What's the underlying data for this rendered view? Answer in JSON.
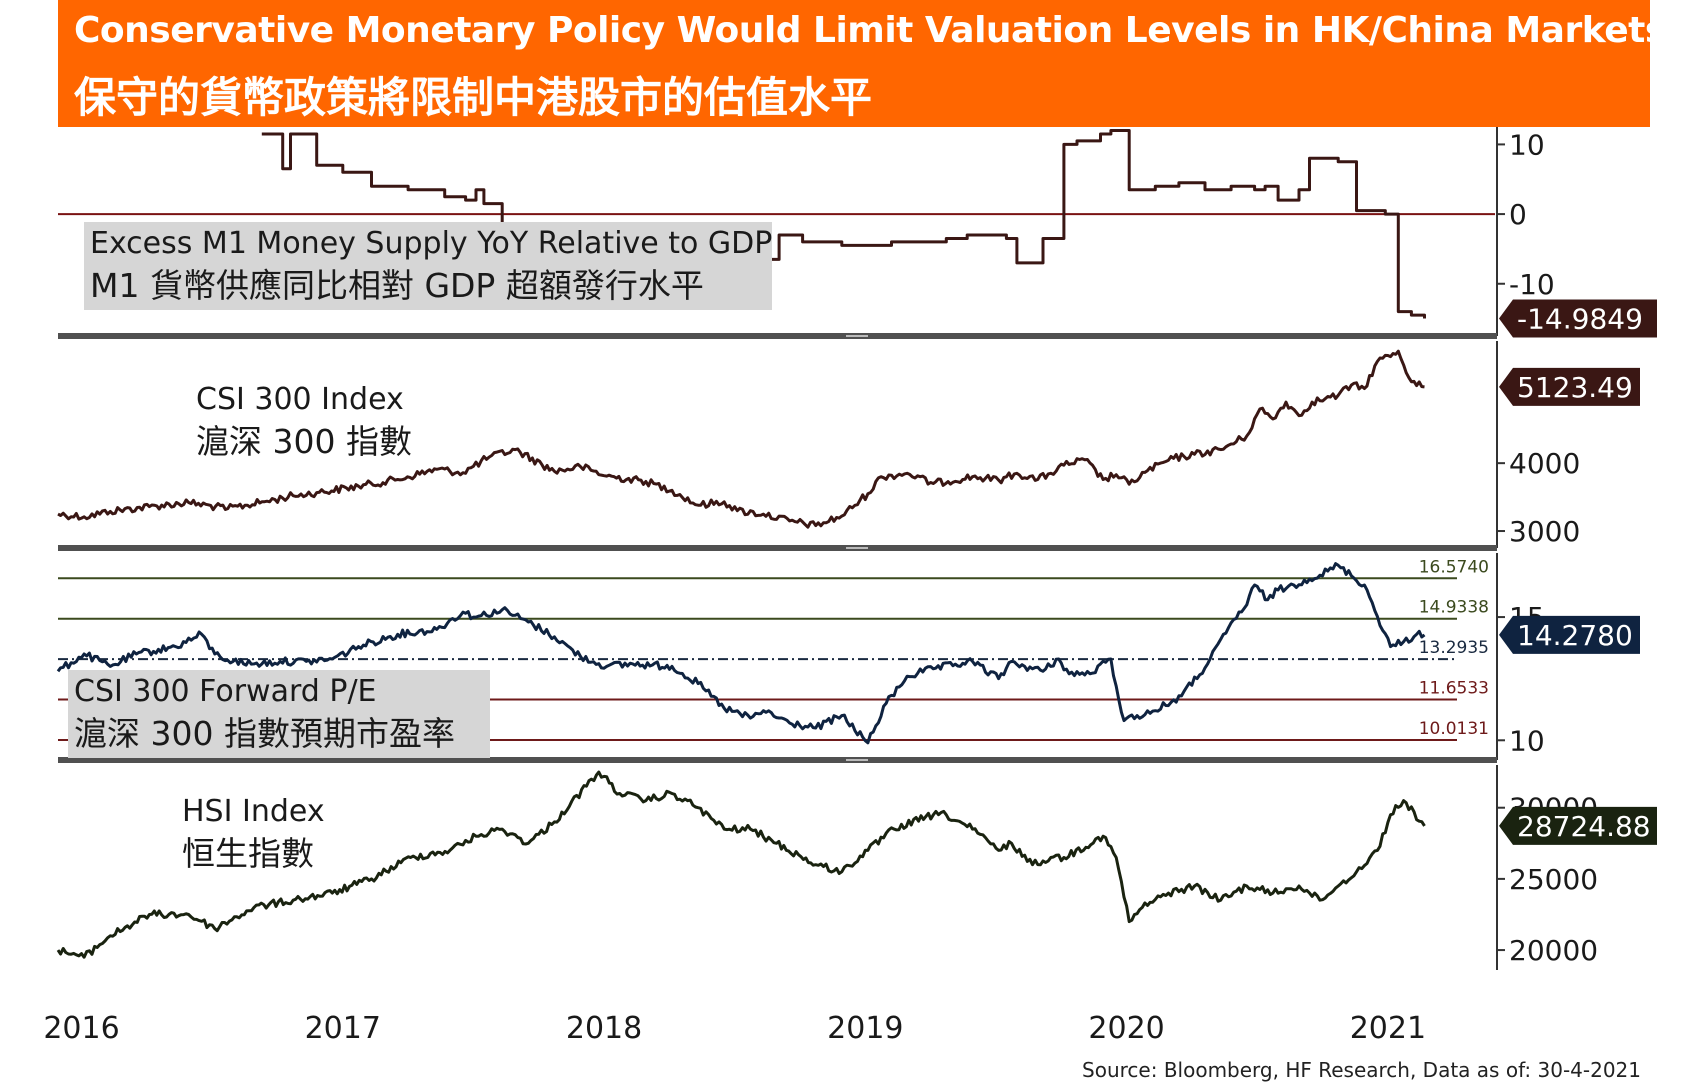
{
  "title": {
    "english": "Conservative Monetary Policy Would Limit Valuation Levels in HK/China Markets",
    "chinese": "保守的貨幣政策將限制中港股市的估值水平"
  },
  "source": "Source: Bloomberg, HF Research, Data as of: 30-4-2021",
  "chart_data": [
    {
      "type": "line",
      "name": "m1-excess",
      "label_en": "Excess M1 Money Supply YoY Relative to GDP",
      "label_zh": "M1 貨幣供應同比相對 GDP 超額發行水平",
      "ylim": [
        -17.5,
        12.5
      ],
      "ticks": [
        10,
        0,
        -10
      ],
      "tick_labels": [
        "10",
        "0",
        "-10"
      ],
      "reference_line": 0,
      "last_value": -14.9849,
      "last_value_label": "-14.9849",
      "badge_color": "#3a1714",
      "line_color": "#3a1714",
      "step": true,
      "x": [
        2016.73,
        2016.81,
        2016.84,
        2016.94,
        2017.04,
        2017.15,
        2017.29,
        2017.43,
        2017.51,
        2017.55,
        2017.58,
        2017.65,
        2017.78,
        2017.95,
        2018.17,
        2018.25,
        2018.4,
        2018.48,
        2018.53,
        2018.63,
        2018.71,
        2018.8,
        2018.95,
        2019.14,
        2019.35,
        2019.43,
        2019.58,
        2019.62,
        2019.72,
        2019.8,
        2019.85,
        2019.94,
        2019.98,
        2020.05,
        2020.15,
        2020.24,
        2020.34,
        2020.44,
        2020.53,
        2020.57,
        2020.62,
        2020.7,
        2020.74,
        2020.85,
        2020.92,
        2020.95,
        2021.03,
        2021.08,
        2021.13,
        2021.18
      ],
      "y": [
        11.5,
        6.5,
        11.5,
        7,
        6,
        4,
        3.5,
        2.5,
        2,
        3.5,
        1.5,
        -3,
        -5,
        -7,
        -7.5,
        -8,
        -8.5,
        -9,
        -9.5,
        -6.5,
        -3,
        -4,
        -4.5,
        -4,
        -3.5,
        -3,
        -3.5,
        -7,
        -3.5,
        10,
        10.5,
        11.5,
        12,
        3.5,
        4,
        4.5,
        3.5,
        4,
        3.5,
        4,
        2,
        3.5,
        8,
        7.5,
        0.5,
        0.5,
        0,
        -14,
        -14.5,
        -14.9849
      ]
    },
    {
      "type": "line",
      "name": "csi300",
      "label_en": "CSI 300 Index",
      "label_zh": "滬深 300 指數",
      "ylim": [
        2750,
        5800
      ],
      "ticks": [
        4000,
        3000
      ],
      "tick_labels": [
        "4000",
        "3000"
      ],
      "last_value": 5123.49,
      "last_value_label": "5123.49",
      "badge_color": "#3a1714",
      "line_color": "#3a1714",
      "x": [
        2015.95,
        2016.05,
        2016.15,
        2016.3,
        2016.45,
        2016.6,
        2016.75,
        2016.85,
        2016.95,
        2017.1,
        2017.25,
        2017.4,
        2017.5,
        2017.6,
        2017.7,
        2017.85,
        2017.95,
        2018.05,
        2018.2,
        2018.3,
        2018.4,
        2018.5,
        2018.55,
        2018.65,
        2018.75,
        2018.85,
        2018.95,
        2019.05,
        2019.1,
        2019.2,
        2019.3,
        2019.45,
        2019.55,
        2019.62,
        2019.7,
        2019.75,
        2019.8,
        2019.88,
        2019.95,
        2020.0,
        2020.05,
        2020.12,
        2020.22,
        2020.3,
        2020.4,
        2020.5,
        2020.55,
        2020.6,
        2020.65,
        2020.7,
        2020.75,
        2020.8,
        2020.85,
        2020.9,
        2020.95,
        2021.0,
        2021.08,
        2021.13,
        2021.18
      ],
      "y": [
        3250,
        3210,
        3290,
        3360,
        3420,
        3330,
        3440,
        3520,
        3570,
        3660,
        3760,
        3910,
        3860,
        4090,
        4200,
        3880,
        3950,
        3810,
        3730,
        3600,
        3380,
        3430,
        3300,
        3250,
        3150,
        3080,
        3220,
        3550,
        3800,
        3850,
        3700,
        3800,
        3750,
        3850,
        3760,
        3850,
        3970,
        4050,
        3760,
        3830,
        3690,
        3890,
        4070,
        4130,
        4200,
        4400,
        4800,
        4650,
        4900,
        4700,
        4900,
        4950,
        5000,
        5150,
        5100,
        5500,
        5650,
        5200,
        5123.49
      ]
    },
    {
      "type": "line",
      "name": "csi300-pe",
      "label_en": "CSI 300 Forward P/E",
      "label_zh": "滬深 300 指數預期市盈率",
      "ylim": [
        9.2,
        17.6
      ],
      "ticks": [
        15,
        10
      ],
      "tick_labels": [
        "15",
        "10"
      ],
      "reference_lines": [
        16.574,
        14.9338,
        13.2935,
        11.6533,
        10.0131
      ],
      "reference_labels": [
        "16.5740",
        "14.9338",
        "13.2935",
        "11.6533",
        "10.0131"
      ],
      "reference_colors": [
        "#3b4a1e",
        "#3b4a1e",
        "#1a2a40",
        "#6e1a1a",
        "#6e1a1a"
      ],
      "last_value": 14.278,
      "last_value_label": "14.2780",
      "badge_color": "#0f2340",
      "line_color": "#0f2340",
      "x": [
        2015.95,
        2016.05,
        2016.15,
        2016.25,
        2016.4,
        2016.5,
        2016.55,
        2016.62,
        2016.7,
        2016.8,
        2016.9,
        2017.0,
        2017.1,
        2017.25,
        2017.4,
        2017.5,
        2017.55,
        2017.65,
        2017.75,
        2017.85,
        2017.95,
        2018.05,
        2018.15,
        2018.3,
        2018.4,
        2018.5,
        2018.6,
        2018.65,
        2018.75,
        2018.85,
        2018.95,
        2019.05,
        2019.12,
        2019.2,
        2019.3,
        2019.45,
        2019.55,
        2019.6,
        2019.65,
        2019.72,
        2019.78,
        2019.82,
        2019.9,
        2019.98,
        2020.0,
        2020.03,
        2020.08,
        2020.15,
        2020.25,
        2020.35,
        2020.45,
        2020.5,
        2020.53,
        2020.58,
        2020.62,
        2020.68,
        2020.72,
        2020.78,
        2020.85,
        2020.95,
        2021.05,
        2021.1,
        2021.15,
        2021.18
      ],
      "y": [
        12.8,
        13.5,
        13.0,
        13.5,
        13.8,
        14.3,
        13.5,
        13.2,
        13.1,
        13.2,
        13.2,
        13.3,
        13.8,
        14.3,
        14.5,
        15.2,
        15.0,
        15.3,
        14.8,
        14.2,
        13.4,
        13.0,
        13.1,
        13.0,
        12.3,
        11.3,
        10.9,
        11.2,
        10.7,
        10.5,
        11.0,
        9.9,
        11.5,
        12.6,
        12.9,
        13.2,
        12.5,
        13.2,
        13.0,
        12.8,
        13.3,
        12.7,
        12.7,
        13.3,
        12.2,
        10.8,
        11.0,
        11.2,
        11.8,
        13.1,
        14.9,
        15.5,
        16.3,
        15.7,
        16.1,
        16.3,
        16.5,
        16.7,
        17.1,
        16.3,
        13.8,
        14.0,
        14.3,
        14.278
      ]
    },
    {
      "type": "line",
      "name": "hsi",
      "label_en": "HSI Index",
      "label_zh": "恒生指數",
      "ylim": [
        18600,
        33000
      ],
      "ticks": [
        30000,
        25000,
        20000
      ],
      "tick_labels": [
        "30000",
        "25000",
        "20000"
      ],
      "last_value": 28724.88,
      "last_value_label": "28724.88",
      "badge_color": "#1a2310",
      "line_color": "#1a2310",
      "x": [
        2015.95,
        2016.05,
        2016.15,
        2016.3,
        2016.45,
        2016.55,
        2016.7,
        2016.85,
        2017.0,
        2017.15,
        2017.3,
        2017.45,
        2017.55,
        2017.65,
        2017.75,
        2017.85,
        2018.02,
        2018.1,
        2018.2,
        2018.3,
        2018.4,
        2018.5,
        2018.6,
        2018.7,
        2018.85,
        2018.95,
        2019.05,
        2019.15,
        2019.3,
        2019.35,
        2019.45,
        2019.55,
        2019.6,
        2019.68,
        2019.75,
        2019.8,
        2019.95,
        2020.0,
        2020.05,
        2020.1,
        2020.2,
        2020.3,
        2020.4,
        2020.5,
        2020.6,
        2020.7,
        2020.78,
        2020.85,
        2020.92,
        2021.0,
        2021.05,
        2021.1,
        2021.18
      ],
      "y": [
        20000,
        19500,
        21000,
        22500,
        22500,
        21500,
        23000,
        23500,
        24000,
        25000,
        26500,
        27000,
        28000,
        28500,
        27500,
        29000,
        32500,
        31000,
        30500,
        31000,
        30000,
        28500,
        28500,
        27500,
        26000,
        25500,
        27000,
        28500,
        29500,
        29500,
        28500,
        27000,
        27500,
        26000,
        26500,
        26500,
        28000,
        26500,
        22000,
        23000,
        24000,
        24500,
        23500,
        24500,
        24000,
        24500,
        23500,
        24500,
        25500,
        27000,
        29500,
        30500,
        28724.88
      ]
    }
  ],
  "x_axis": {
    "tick_values": [
      2016,
      2017,
      2018,
      2019,
      2020,
      2021
    ],
    "tick_labels": [
      "2016",
      "2017",
      "2018",
      "2019",
      "2020",
      "2021"
    ],
    "range": [
      2015.95,
      2021.45
    ]
  },
  "colors": {
    "title_bar": "#ff6600",
    "divider": "#505050",
    "label_box": "#d6d6d6"
  }
}
